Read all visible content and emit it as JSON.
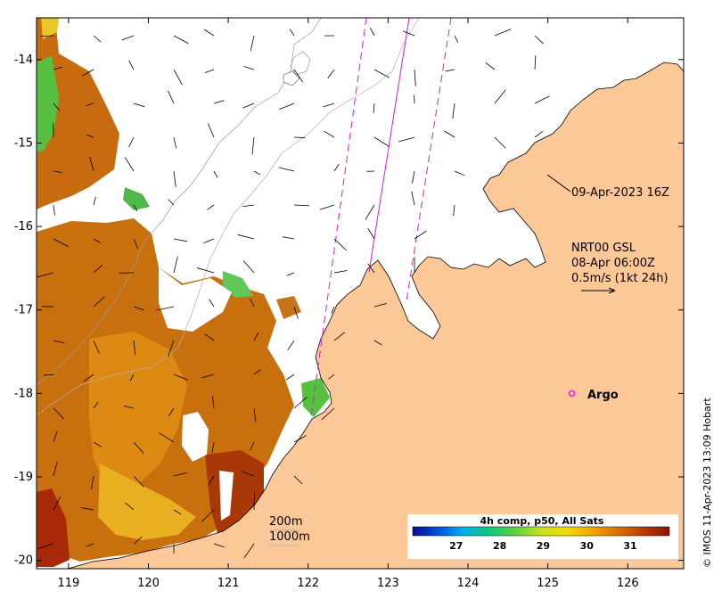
{
  "map": {
    "lon_range": [
      118.6,
      126.7
    ],
    "lat_range": [
      -20.1,
      -13.5
    ],
    "x_ticks": [
      {
        "value": 119,
        "label": "119"
      },
      {
        "value": 120,
        "label": "120"
      },
      {
        "value": 121,
        "label": "121"
      },
      {
        "value": 122,
        "label": "122"
      },
      {
        "value": 123,
        "label": "123"
      },
      {
        "value": 124,
        "label": "124"
      },
      {
        "value": 125,
        "label": "125"
      },
      {
        "value": 126,
        "label": "126"
      }
    ],
    "y_ticks": [
      {
        "value": -14,
        "label": "-14"
      },
      {
        "value": -15,
        "label": "-15"
      },
      {
        "value": -16,
        "label": "-16"
      },
      {
        "value": -17,
        "label": "-17"
      },
      {
        "value": -18,
        "label": "-18"
      },
      {
        "value": -19,
        "label": "-19"
      },
      {
        "value": -20,
        "label": "-20"
      }
    ],
    "land_color": "#fcc898",
    "track_color": "#cc22cc"
  },
  "annotations": {
    "satellite_pass": "09-Apr-2023 16Z",
    "current_model": "NRT00 GSL",
    "current_time": "08-Apr 06:00Z",
    "current_scale": "0.5m/s (1kt 24h)",
    "argo_label": "Argo",
    "isobath_200": "200m",
    "isobath_1000": "1000m"
  },
  "argo": {
    "lon": 125.3,
    "lat": -18.0,
    "color": "#dd22dd"
  },
  "colorbar": {
    "title": "4h comp, p50, All Sats",
    "range": [
      26.0,
      31.9
    ],
    "ticks": [
      {
        "value": 27,
        "label": "27"
      },
      {
        "value": 28,
        "label": "28"
      },
      {
        "value": 29,
        "label": "29"
      },
      {
        "value": 30,
        "label": "30"
      },
      {
        "value": 31,
        "label": "31"
      }
    ],
    "colors": [
      "#0a0a8c",
      "#0050e0",
      "#00b4e6",
      "#10c878",
      "#60d040",
      "#c8e020",
      "#f0dc00",
      "#f0a800",
      "#d87000",
      "#b83c00",
      "#8c1400"
    ]
  },
  "credit": "© IMOS 11-Apr-2023 13:09 Hobart"
}
